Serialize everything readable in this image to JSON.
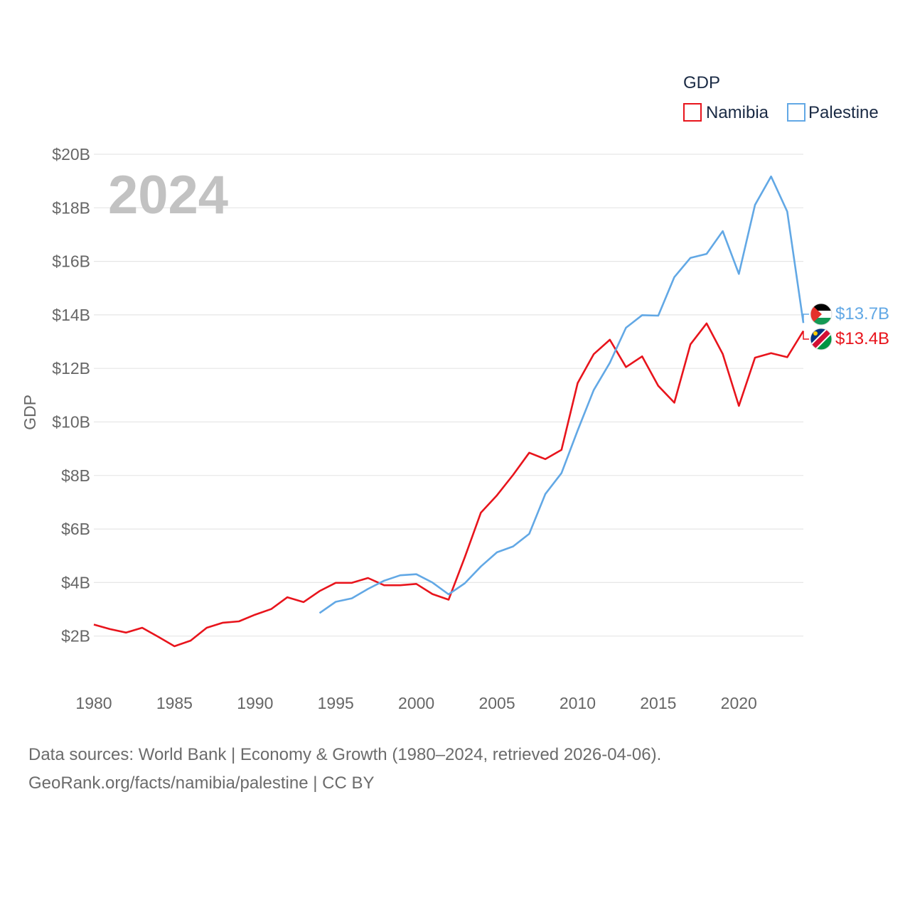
{
  "chart_data": {
    "type": "line",
    "year_label": "2024",
    "ylabel": "GDP",
    "xlabel": "",
    "xlim": [
      1980,
      2024
    ],
    "ylim": [
      0,
      20
    ],
    "y_unit": "billion USD",
    "y_ticks": [
      {
        "value": 2,
        "label": "$2B"
      },
      {
        "value": 4,
        "label": "$4B"
      },
      {
        "value": 6,
        "label": "$6B"
      },
      {
        "value": 8,
        "label": "$8B"
      },
      {
        "value": 10,
        "label": "$10B"
      },
      {
        "value": 12,
        "label": "$12B"
      },
      {
        "value": 14,
        "label": "$14B"
      },
      {
        "value": 16,
        "label": "$16B"
      },
      {
        "value": 18,
        "label": "$18B"
      },
      {
        "value": 20,
        "label": "$20B"
      }
    ],
    "x_ticks": [
      {
        "value": 1980,
        "label": "1980"
      },
      {
        "value": 1985,
        "label": "1985"
      },
      {
        "value": 1990,
        "label": "1990"
      },
      {
        "value": 1995,
        "label": "1995"
      },
      {
        "value": 2000,
        "label": "2000"
      },
      {
        "value": 2005,
        "label": "2005"
      },
      {
        "value": 2010,
        "label": "2010"
      },
      {
        "value": 2015,
        "label": "2015"
      },
      {
        "value": 2020,
        "label": "2020"
      }
    ],
    "legend": {
      "title": "GDP",
      "position": "top-right"
    },
    "series": [
      {
        "name": "Namibia",
        "color": "#e8141c",
        "end_label": "$13.4B",
        "x": [
          1980,
          1981,
          1982,
          1983,
          1984,
          1985,
          1986,
          1987,
          1988,
          1989,
          1990,
          1991,
          1992,
          1993,
          1994,
          1995,
          1996,
          1997,
          1998,
          1999,
          2000,
          2001,
          2002,
          2003,
          2004,
          2005,
          2006,
          2007,
          2008,
          2009,
          2010,
          2011,
          2012,
          2013,
          2014,
          2015,
          2016,
          2017,
          2018,
          2019,
          2020,
          2021,
          2022,
          2023,
          2024
        ],
        "values": [
          2.43,
          2.26,
          2.13,
          2.31,
          1.97,
          1.62,
          1.83,
          2.31,
          2.5,
          2.55,
          2.8,
          3.01,
          3.45,
          3.27,
          3.68,
          3.99,
          3.99,
          4.17,
          3.9,
          3.9,
          3.95,
          3.57,
          3.36,
          4.94,
          6.61,
          7.26,
          8.02,
          8.85,
          8.61,
          8.96,
          11.45,
          12.53,
          13.07,
          12.05,
          12.45,
          11.35,
          10.72,
          12.9,
          13.68,
          12.54,
          10.6,
          12.4,
          12.57,
          12.42,
          13.4
        ]
      },
      {
        "name": "Palestine",
        "color": "#62a8e5",
        "end_label": "$13.7B",
        "x": [
          1994,
          1995,
          1996,
          1997,
          1998,
          1999,
          2000,
          2001,
          2002,
          2003,
          2004,
          2005,
          2006,
          2007,
          2008,
          2009,
          2010,
          2011,
          2012,
          2013,
          2014,
          2015,
          2016,
          2017,
          2018,
          2019,
          2020,
          2021,
          2022,
          2023,
          2024
        ],
        "values": [
          2.86,
          3.28,
          3.41,
          3.76,
          4.07,
          4.27,
          4.31,
          4.0,
          3.56,
          3.97,
          4.6,
          5.13,
          5.35,
          5.82,
          7.31,
          8.09,
          9.68,
          11.19,
          12.21,
          13.52,
          13.99,
          13.97,
          15.41,
          16.13,
          16.28,
          17.13,
          15.53,
          18.11,
          19.17,
          17.86,
          13.7
        ]
      }
    ]
  },
  "source": {
    "line1": "Data sources: World Bank | Economy & Growth (1980–2024, retrieved 2026-04-06).",
    "line2": "GeoRank.org/facts/namibia/palestine | CC BY"
  }
}
